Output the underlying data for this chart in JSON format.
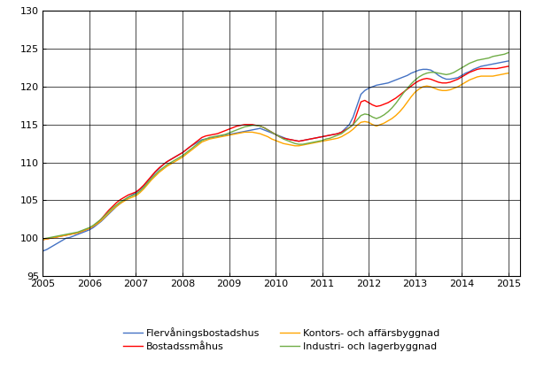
{
  "ylim": [
    95,
    130
  ],
  "xlim_start": 2005.0,
  "xlim_end": 2015.25,
  "yticks": [
    95,
    100,
    105,
    110,
    115,
    120,
    125,
    130
  ],
  "xticks": [
    2005,
    2006,
    2007,
    2008,
    2009,
    2010,
    2011,
    2012,
    2013,
    2014,
    2015
  ],
  "colors": {
    "flervaning": "#4472C4",
    "bostads": "#FF0000",
    "kontors": "#FFA500",
    "industri": "#70AD47"
  },
  "legend": [
    {
      "label": "Flervåningsbostadshus",
      "color": "#4472C4"
    },
    {
      "label": "Bostadssmåhus",
      "color": "#FF0000"
    },
    {
      "label": "Kontors- och affärsbyggnad",
      "color": "#FFA500"
    },
    {
      "label": "Industri- och lagerbyggnad",
      "color": "#70AD47"
    }
  ],
  "t_start": 2005.0,
  "t_end": 2015.0,
  "n_points": 121,
  "flervaning": [
    98.3,
    98.5,
    98.8,
    99.1,
    99.4,
    99.7,
    100.0,
    100.1,
    100.3,
    100.5,
    100.7,
    100.9,
    101.1,
    101.4,
    101.8,
    102.2,
    102.7,
    103.2,
    103.7,
    104.2,
    104.6,
    105.0,
    105.4,
    105.7,
    106.0,
    106.4,
    106.9,
    107.5,
    108.1,
    108.7,
    109.2,
    109.7,
    110.1,
    110.4,
    110.7,
    111.0,
    111.3,
    111.7,
    112.1,
    112.4,
    112.7,
    113.0,
    113.1,
    113.2,
    113.3,
    113.4,
    113.5,
    113.6,
    113.7,
    113.8,
    113.9,
    114.0,
    114.1,
    114.2,
    114.3,
    114.4,
    114.5,
    114.3,
    114.1,
    113.9,
    113.7,
    113.5,
    113.3,
    113.1,
    113.0,
    112.9,
    112.8,
    112.9,
    113.0,
    113.1,
    113.2,
    113.3,
    113.4,
    113.5,
    113.6,
    113.7,
    113.8,
    114.0,
    114.5,
    115.0,
    116.0,
    117.5,
    119.0,
    119.5,
    119.8,
    120.0,
    120.2,
    120.3,
    120.4,
    120.5,
    120.7,
    120.9,
    121.1,
    121.3,
    121.5,
    121.8,
    122.0,
    122.2,
    122.3,
    122.3,
    122.2,
    121.9,
    121.5,
    121.2,
    121.0,
    121.0,
    121.1,
    121.2,
    121.5,
    121.8,
    122.0,
    122.3,
    122.5,
    122.7,
    122.8,
    122.9,
    123.0,
    123.1,
    123.2,
    123.3,
    123.4
  ],
  "bostads": [
    99.8,
    99.9,
    100.0,
    100.1,
    100.2,
    100.3,
    100.4,
    100.5,
    100.6,
    100.7,
    100.9,
    101.1,
    101.3,
    101.6,
    102.0,
    102.5,
    103.1,
    103.7,
    104.2,
    104.7,
    105.1,
    105.4,
    105.7,
    105.9,
    106.1,
    106.5,
    107.0,
    107.6,
    108.2,
    108.8,
    109.3,
    109.7,
    110.1,
    110.4,
    110.7,
    111.0,
    111.3,
    111.7,
    112.1,
    112.5,
    112.9,
    113.3,
    113.5,
    113.6,
    113.7,
    113.8,
    114.0,
    114.2,
    114.4,
    114.6,
    114.8,
    114.9,
    115.0,
    115.0,
    115.0,
    114.9,
    114.8,
    114.6,
    114.3,
    114.0,
    113.7,
    113.4,
    113.2,
    113.1,
    113.0,
    112.9,
    112.8,
    112.9,
    113.0,
    113.1,
    113.2,
    113.3,
    113.4,
    113.5,
    113.6,
    113.7,
    113.8,
    114.0,
    114.3,
    114.6,
    115.0,
    116.5,
    118.0,
    118.2,
    117.9,
    117.6,
    117.4,
    117.5,
    117.7,
    117.9,
    118.2,
    118.5,
    118.9,
    119.3,
    119.7,
    120.1,
    120.5,
    120.8,
    121.0,
    121.1,
    121.0,
    120.8,
    120.6,
    120.5,
    120.5,
    120.6,
    120.8,
    121.0,
    121.3,
    121.6,
    121.9,
    122.1,
    122.3,
    122.4,
    122.4,
    122.4,
    122.4,
    122.4,
    122.5,
    122.6,
    122.7
  ],
  "kontors": [
    99.8,
    99.9,
    100.0,
    100.1,
    100.2,
    100.3,
    100.4,
    100.5,
    100.6,
    100.7,
    100.9,
    101.1,
    101.3,
    101.6,
    101.9,
    102.3,
    102.8,
    103.3,
    103.8,
    104.2,
    104.6,
    104.9,
    105.2,
    105.4,
    105.6,
    106.0,
    106.5,
    107.1,
    107.7,
    108.2,
    108.7,
    109.1,
    109.5,
    109.8,
    110.1,
    110.4,
    110.7,
    111.1,
    111.5,
    111.9,
    112.3,
    112.7,
    112.9,
    113.1,
    113.2,
    113.3,
    113.4,
    113.5,
    113.6,
    113.7,
    113.8,
    113.9,
    114.0,
    114.0,
    114.0,
    113.9,
    113.8,
    113.6,
    113.4,
    113.1,
    112.9,
    112.7,
    112.5,
    112.4,
    112.3,
    112.2,
    112.2,
    112.3,
    112.4,
    112.5,
    112.6,
    112.7,
    112.8,
    112.9,
    113.0,
    113.1,
    113.2,
    113.4,
    113.7,
    114.0,
    114.4,
    114.9,
    115.3,
    115.4,
    115.3,
    115.0,
    114.8,
    115.0,
    115.2,
    115.5,
    115.8,
    116.2,
    116.7,
    117.3,
    118.0,
    118.7,
    119.3,
    119.7,
    120.0,
    120.1,
    120.0,
    119.8,
    119.6,
    119.5,
    119.5,
    119.6,
    119.8,
    120.0,
    120.3,
    120.6,
    120.9,
    121.1,
    121.3,
    121.4,
    121.4,
    121.4,
    121.4,
    121.5,
    121.6,
    121.7,
    121.8
  ],
  "industri": [
    99.9,
    100.0,
    100.1,
    100.2,
    100.3,
    100.4,
    100.5,
    100.6,
    100.7,
    100.8,
    101.0,
    101.2,
    101.4,
    101.7,
    102.1,
    102.5,
    103.0,
    103.5,
    104.0,
    104.4,
    104.8,
    105.1,
    105.4,
    105.6,
    105.8,
    106.2,
    106.7,
    107.3,
    107.9,
    108.4,
    108.9,
    109.3,
    109.7,
    110.0,
    110.3,
    110.6,
    110.9,
    111.3,
    111.7,
    112.1,
    112.5,
    112.9,
    113.1,
    113.3,
    113.4,
    113.5,
    113.6,
    113.7,
    113.9,
    114.1,
    114.3,
    114.5,
    114.7,
    114.8,
    114.9,
    114.9,
    114.8,
    114.6,
    114.3,
    114.0,
    113.7,
    113.4,
    113.1,
    112.9,
    112.7,
    112.5,
    112.4,
    112.4,
    112.5,
    112.6,
    112.7,
    112.8,
    112.9,
    113.1,
    113.2,
    113.4,
    113.6,
    113.8,
    114.2,
    114.6,
    115.0,
    115.6,
    116.2,
    116.4,
    116.3,
    116.0,
    115.8,
    116.0,
    116.3,
    116.7,
    117.2,
    117.8,
    118.5,
    119.2,
    119.8,
    120.4,
    120.9,
    121.3,
    121.6,
    121.8,
    121.9,
    121.9,
    121.8,
    121.7,
    121.6,
    121.7,
    121.9,
    122.2,
    122.5,
    122.8,
    123.1,
    123.3,
    123.5,
    123.6,
    123.7,
    123.8,
    124.0,
    124.1,
    124.2,
    124.3,
    124.5
  ]
}
